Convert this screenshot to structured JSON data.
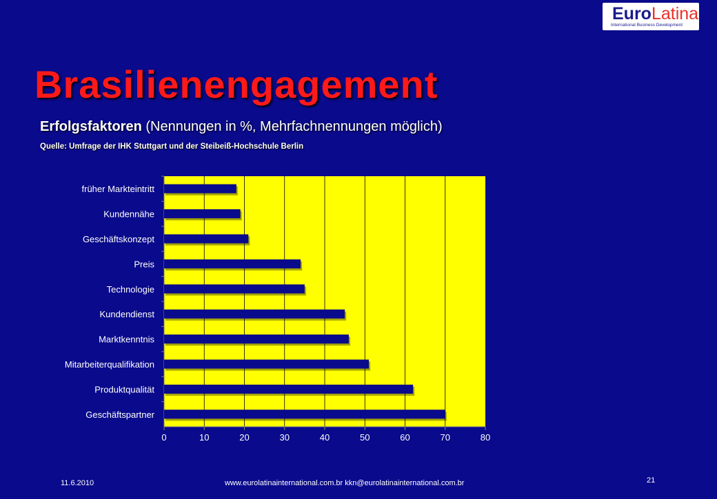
{
  "logo": {
    "euro": "Euro",
    "latina": "Latina",
    "tagline": "International Business Development"
  },
  "slide": {
    "title": "Brasilienengagement",
    "subtitle_bold": "Erfolgsfaktoren",
    "subtitle_rest": " (Nennungen in %, Mehrfachnennungen möglich)",
    "source": "Quelle: Umfrage der IHK Stuttgart und der Steibeiß-Hochschule Berlin"
  },
  "footer": {
    "date": "11.6.2010",
    "contact": "www.eurolatinainternational.com.br  kkn@eurolatinainternational.com.br",
    "page_number": "21"
  },
  "colors": {
    "background": "#0a0a8c",
    "plot_area": "#ffff00",
    "bar": "#0a0a8c",
    "title": "#ff1a1a",
    "text": "#ffffff"
  },
  "chart_data": {
    "type": "bar",
    "orientation": "horizontal",
    "categories": [
      "früher Markteintritt",
      "Kundennähe",
      "Geschäftskonzept",
      "Preis",
      "Technologie",
      "Kundendienst",
      "Marktkenntnis",
      "Mitarbeiterqualifikation",
      "Produktqualität",
      "Geschäftspartner"
    ],
    "values": [
      18,
      19,
      21,
      34,
      35,
      45,
      46,
      51,
      62,
      70
    ],
    "xlim": [
      0,
      80
    ],
    "xticks": [
      "0",
      "10",
      "20",
      "30",
      "40",
      "50",
      "60",
      "70",
      "80"
    ],
    "xlabel": "",
    "ylabel": "",
    "grid": "vertical",
    "legend": "none"
  }
}
